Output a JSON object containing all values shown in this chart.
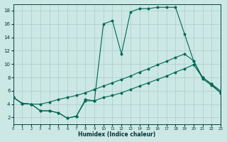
{
  "xlabel": "Humidex (Indice chaleur)",
  "bg_color": "#cce8e4",
  "grid_color": "#aaccca",
  "line_color": "#006655",
  "xlim": [
    0,
    23
  ],
  "ylim": [
    1,
    19
  ],
  "xticks": [
    0,
    1,
    2,
    3,
    4,
    5,
    6,
    7,
    8,
    9,
    10,
    11,
    12,
    13,
    14,
    15,
    16,
    17,
    18,
    19,
    20,
    21,
    22,
    23
  ],
  "yticks": [
    2,
    4,
    6,
    8,
    10,
    12,
    14,
    16,
    18
  ],
  "line1_x": [
    0,
    1,
    2,
    3,
    4,
    5,
    6,
    7,
    8,
    9,
    10,
    11,
    12,
    13,
    14,
    15,
    16,
    17,
    18,
    19,
    20,
    21,
    22,
    23
  ],
  "line1_y": [
    5.0,
    4.1,
    4.0,
    3.0,
    3.0,
    2.7,
    1.9,
    2.2,
    4.7,
    4.5,
    16.0,
    16.5,
    11.5,
    17.8,
    18.3,
    18.3,
    18.5,
    18.5,
    18.5,
    14.5,
    10.5,
    7.8,
    6.8,
    5.7
  ],
  "line2_x": [
    0,
    1,
    2,
    3,
    4,
    5,
    6,
    7,
    8,
    9,
    10,
    11,
    12,
    13,
    14,
    15,
    16,
    17,
    18,
    19,
    20,
    21,
    22,
    23
  ],
  "line2_y": [
    5.0,
    4.1,
    4.0,
    4.0,
    4.3,
    4.7,
    5.0,
    5.3,
    5.7,
    6.2,
    6.7,
    7.2,
    7.7,
    8.2,
    8.8,
    9.3,
    9.9,
    10.4,
    11.0,
    11.5,
    10.5,
    8.0,
    7.0,
    6.0
  ],
  "line3_x": [
    0,
    1,
    2,
    3,
    4,
    5,
    6,
    7,
    8,
    9,
    10,
    11,
    12,
    13,
    14,
    15,
    16,
    17,
    18,
    19,
    20,
    21,
    22,
    23
  ],
  "line3_y": [
    5.0,
    4.1,
    4.0,
    3.0,
    3.0,
    2.7,
    1.9,
    2.2,
    4.5,
    4.5,
    5.0,
    5.3,
    5.7,
    6.2,
    6.7,
    7.2,
    7.7,
    8.2,
    8.8,
    9.3,
    9.9,
    8.0,
    7.0,
    5.7
  ]
}
